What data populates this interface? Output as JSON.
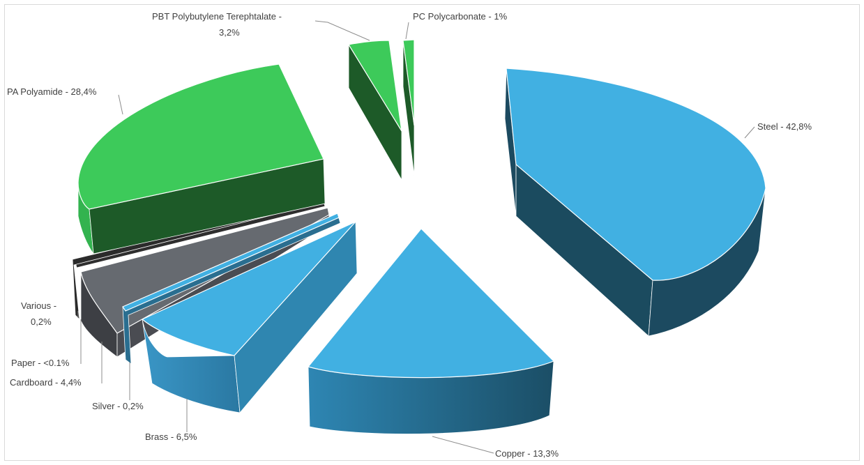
{
  "chart_data": {
    "type": "pie",
    "title": "",
    "series": [
      {
        "name": "",
        "values": [
          42.8,
          13.3,
          6.5,
          0.2,
          4.4,
          0.1,
          0.2,
          28.4,
          3.2,
          1.0
        ]
      }
    ],
    "categories": [
      "Steel",
      "Copper",
      "Brass",
      "Silver",
      "Cardboard",
      "Paper",
      "Various",
      "PA Polyamide",
      "PBT Polybutylene Terephtalate",
      "PC Polycarbonate"
    ],
    "slices": [
      {
        "name": "Steel",
        "value": 42.8,
        "label": "Steel - 42,8%",
        "color": "#41b0e2"
      },
      {
        "name": "Copper",
        "value": 13.3,
        "label": "Copper - 13,3%",
        "color": "#41b0e2"
      },
      {
        "name": "Brass",
        "value": 6.5,
        "label": "Brass - 6,5%",
        "color": "#41b0e2"
      },
      {
        "name": "Silver",
        "value": 0.2,
        "label": "Silver - 0,2%",
        "color": "#41b0e2"
      },
      {
        "name": "Cardboard",
        "value": 4.4,
        "label": "Cardboard - 4,4%",
        "color": "#666a70"
      },
      {
        "name": "Paper",
        "value": 0.1,
        "label": "Paper - <0.1%",
        "color": "#3a3a3a"
      },
      {
        "name": "Various",
        "value": 0.2,
        "label_lines": [
          "Various -",
          "0,2%"
        ],
        "color": "#3a3a3a"
      },
      {
        "name": "PA Polyamide",
        "value": 28.4,
        "label": "PA Polyamide - 28,4%",
        "color": "#3dca5a"
      },
      {
        "name": "PBT Polybutylene Terephtalate",
        "value": 3.2,
        "label_lines": [
          "PBT Polybutylene Terephtalate -",
          "3,2%"
        ],
        "color": "#3dca5a"
      },
      {
        "name": "PC Polycarbonate",
        "value": 1.0,
        "label": "PC Polycarbonate - 1%",
        "color": "#3dca5a"
      }
    ],
    "exploded": true,
    "three_d": true,
    "legend": "none"
  }
}
